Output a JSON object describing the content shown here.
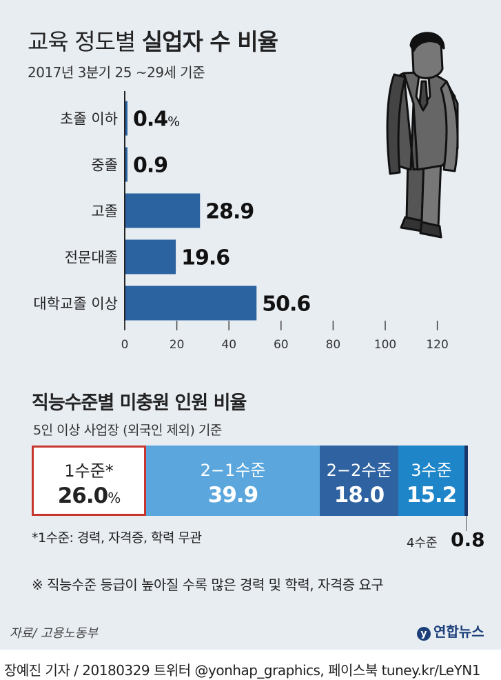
{
  "title_light": "교육 정도별",
  "title_bold": "실업자 수 비율",
  "subtitle": "2017년 3분기 25 ~29세 기준",
  "chart_data": [
    {
      "type": "bar",
      "orientation": "horizontal",
      "categories": [
        "초졸 이하",
        "중졸",
        "고졸",
        "전문대졸",
        "대학교졸 이상"
      ],
      "values": [
        0.4,
        0.9,
        28.9,
        19.6,
        50.6
      ],
      "value_labels": [
        "0.4",
        "0.9",
        "28.9",
        "19.6",
        "50.6"
      ],
      "first_value_unit": "%",
      "xlim": [
        0,
        120
      ],
      "xticks": [
        "0",
        "20",
        "40",
        "60",
        "80",
        "100",
        "120"
      ],
      "bar_color": "#2b62a0"
    },
    {
      "type": "stacked-bar",
      "title": "직능수준별 미충원 인원 비율",
      "subtitle": "5인 이상 사업장 (외국인 제외) 기준",
      "segments": [
        {
          "label": "1수준*",
          "value": 26.0,
          "value_text": "26.0",
          "unit": "%",
          "color": "#ffffff"
        },
        {
          "label": "2−1수준",
          "value": 39.9,
          "value_text": "39.9",
          "color": "#5ba7dd"
        },
        {
          "label": "2−2수준",
          "value": 18.0,
          "value_text": "18.0",
          "color": "#2e62a1"
        },
        {
          "label": "3수준",
          "value": 15.2,
          "value_text": "15.2",
          "color": "#1e86c8"
        },
        {
          "label": "4수준",
          "value": 0.8,
          "value_text": "0.8",
          "color": "#1c3569"
        }
      ]
    }
  ],
  "footnote": "*1수준: 경력, 자격증, 학력 무관",
  "note": "※ 직능수준 등급이 높아질 수록 많은 경력 및 학력, 자격증 요구",
  "source": "자료/ 고용노동부",
  "logo": "연합뉴스",
  "credit": "장예진 기자 / 20180329 트위터 @yonhap_graphics, 페이스북 tuney.kr/LeYN1"
}
